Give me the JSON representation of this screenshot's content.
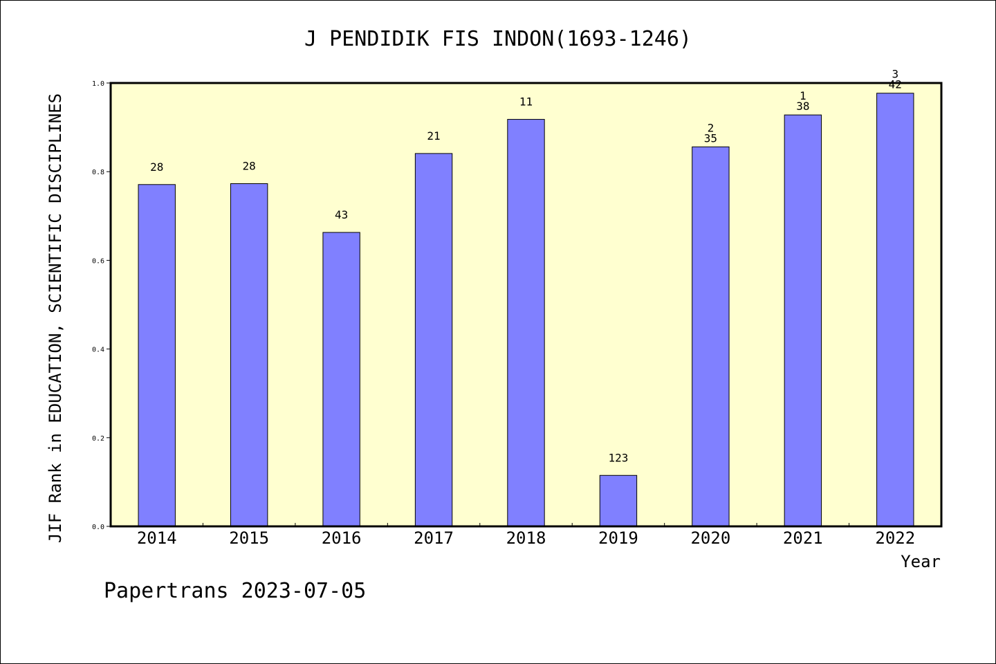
{
  "chart_data": {
    "type": "bar",
    "title": "J PENDIDIK FIS INDON(1693-1246)",
    "xlabel": "Year",
    "ylabel": "JIF Rank in EDUCATION, SCIENTIFIC DISCIPLINES",
    "ylim": [
      0,
      1.0
    ],
    "yticks": [
      "0.0",
      "0.2",
      "0.4",
      "0.6",
      "0.8",
      "1.0"
    ],
    "categories": [
      "2014",
      "2015",
      "2016",
      "2017",
      "2018",
      "2019",
      "2020",
      "2021",
      "2022"
    ],
    "values": [
      0.771,
      0.773,
      0.663,
      0.841,
      0.918,
      0.115,
      0.856,
      0.928,
      0.977
    ],
    "bar_labels": [
      "28",
      "28",
      "43",
      "21",
      "11",
      "123",
      "35",
      "38",
      "42"
    ],
    "top_labels": [
      "",
      "",
      "",
      "",
      "",
      "",
      "2",
      "1",
      "3"
    ],
    "grid": false,
    "colors": {
      "bar": "#8080ff",
      "plot_background": "#ffffd0",
      "axis": "#000000"
    }
  },
  "footer": "Papertrans 2023-07-05"
}
